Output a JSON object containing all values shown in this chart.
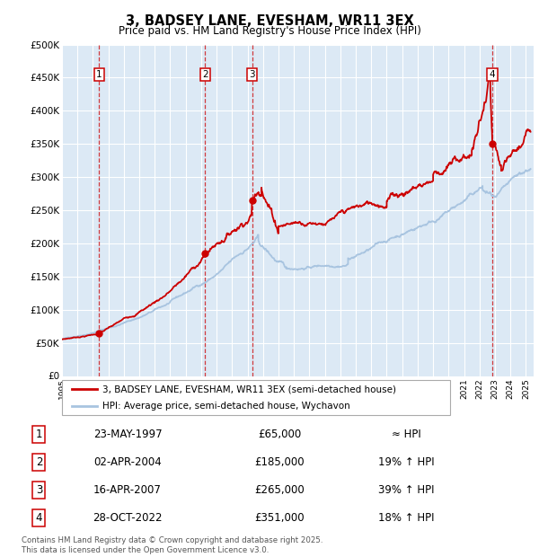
{
  "title": "3, BADSEY LANE, EVESHAM, WR11 3EX",
  "subtitle": "Price paid vs. HM Land Registry's House Price Index (HPI)",
  "background_color": "#dce9f5",
  "plot_bg_color": "#dce9f5",
  "hpi_color": "#a8c4e0",
  "price_color": "#cc0000",
  "ylim": [
    0,
    500000
  ],
  "yticks": [
    0,
    50000,
    100000,
    150000,
    200000,
    250000,
    300000,
    350000,
    400000,
    450000,
    500000
  ],
  "xlim_start": 1995.0,
  "xlim_end": 2025.5,
  "sale_dates_decimal": [
    1997.39,
    2004.25,
    2007.29,
    2022.83
  ],
  "sale_prices": [
    65000,
    185000,
    265000,
    351000
  ],
  "sale_labels": [
    "1",
    "2",
    "3",
    "4"
  ],
  "legend_price_label": "3, BADSEY LANE, EVESHAM, WR11 3EX (semi-detached house)",
  "legend_hpi_label": "HPI: Average price, semi-detached house, Wychavon",
  "table_rows": [
    {
      "num": "1",
      "date": "23-MAY-1997",
      "price": "£65,000",
      "change": "≈ HPI"
    },
    {
      "num": "2",
      "date": "02-APR-2004",
      "price": "£185,000",
      "change": "19% ↑ HPI"
    },
    {
      "num": "3",
      "date": "16-APR-2007",
      "price": "£265,000",
      "change": "39% ↑ HPI"
    },
    {
      "num": "4",
      "date": "28-OCT-2022",
      "price": "£351,000",
      "change": "18% ↑ HPI"
    }
  ],
  "footer": "Contains HM Land Registry data © Crown copyright and database right 2025.\nThis data is licensed under the Open Government Licence v3.0."
}
